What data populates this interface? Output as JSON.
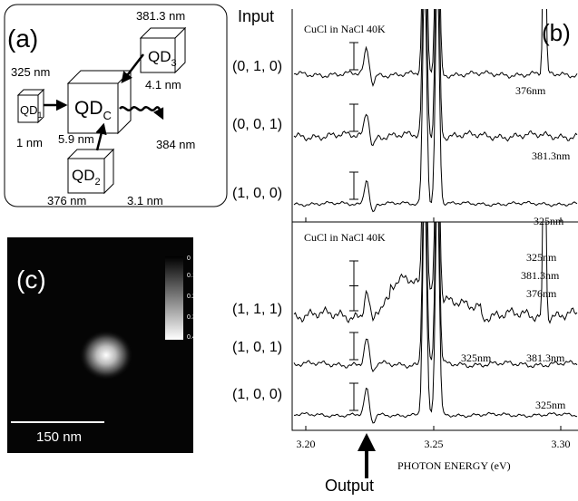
{
  "panel_a": {
    "label": "(a)",
    "qd_1": {
      "text": "QD",
      "subscript": "1"
    },
    "qd_c": {
      "text": "QD",
      "subscript": "C"
    },
    "qd_2": {
      "text": "QD",
      "subscript": "2"
    },
    "qd_3": {
      "text": "QD",
      "subscript": "3"
    },
    "labels": [
      "325 nm",
      "1 nm",
      "5.9 nm",
      "381.3 nm",
      "4.1 nm",
      "384 nm",
      "376 nm",
      "3.1 nm"
    ]
  },
  "panel_c": {
    "label": "(c)",
    "scale_bar": "150 nm",
    "colorbar": [
      "0",
      "0.10",
      "0.20",
      "0.30",
      "0.40"
    ]
  },
  "panel_b": {
    "label": "(b)",
    "input": "Input",
    "output": "Output",
    "x_axis_title": "PHOTON ENERGY (eV)",
    "x_ticks": [
      "3.20",
      "3.25",
      "3.30"
    ],
    "sample": [
      "CuCl in NaCl 40K",
      "CuCl in NaCl 40K"
    ],
    "rows": [
      "(0, 1, 0)",
      "(0, 0, 1)",
      "(1, 0, 0)",
      "(1, 1, 1)",
      "(1, 0, 1)",
      "(1, 0, 0)"
    ],
    "notes": [
      "376nm",
      "381.3nm",
      "325nm",
      "325nm",
      "381.3nm",
      "376nm",
      "325nm",
      "381.3nm",
      "325nm"
    ]
  }
}
